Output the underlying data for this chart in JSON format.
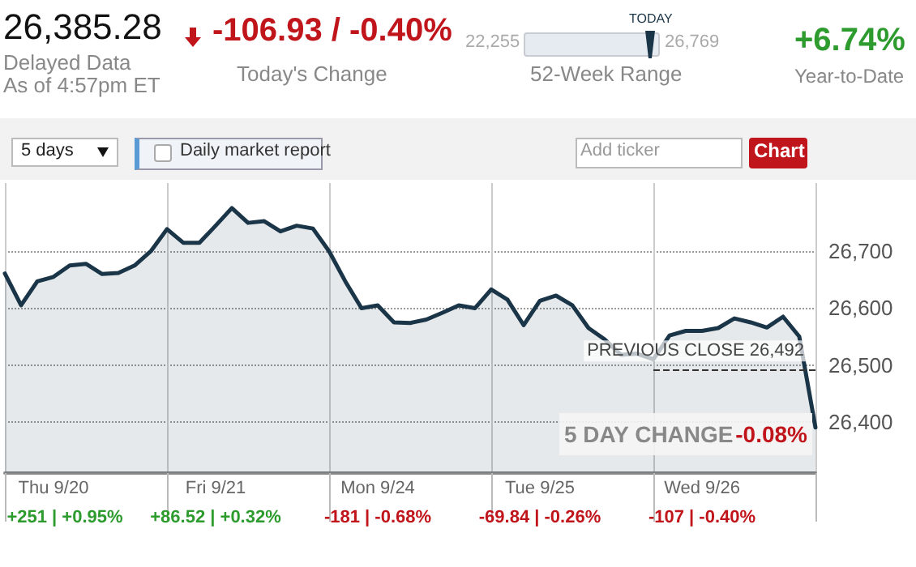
{
  "chart_data": {
    "type": "area",
    "annotations": [
      "26,385.28",
      "Delayed Data",
      "As of 4:57pm ET",
      "-106.93 / -0.40%",
      "Today's Change",
      "22,255",
      "26,769",
      "TODAY",
      "52-Week Range",
      "+6.74%",
      "Year-to-Date",
      "5 days",
      "Daily market report",
      "Add ticker",
      "Chart",
      "5 DAY CHANGE",
      "-0.08%",
      "+251 | +0.95%",
      "+86.52 | +0.32%",
      "-181 | -0.68%",
      "-69.84 | -0.26%",
      "-107 | -0.40%"
    ],
    "categories": [
      null,
      null,
      null,
      "Thu 9/20",
      null,
      null,
      null,
      null,
      null,
      null,
      null,
      null,
      null,
      "Fri 9/21",
      null,
      null,
      null,
      null,
      null,
      null,
      null,
      null,
      null,
      "Mon 9/24",
      null,
      null,
      null,
      null,
      null,
      null,
      null,
      null,
      null,
      "Tue 9/25",
      null,
      null,
      null,
      null,
      null,
      null,
      null,
      null,
      null,
      "Wed 9/26",
      null,
      null,
      null,
      null,
      null,
      null,
      null
    ],
    "series": [
      {
        "color": "#1b3548",
        "values": [
          26661,
          26605,
          26647,
          26655,
          26675,
          26678,
          26660,
          26662,
          26675,
          26700,
          26739,
          26715,
          26715,
          26745,
          26776,
          26750,
          26753,
          26735,
          26745,
          26740,
          26700,
          26647,
          26600,
          26605,
          26575,
          26574,
          26580,
          26592,
          26605,
          26600,
          26633,
          26615,
          26570,
          26613,
          26622,
          26605,
          26565,
          26545,
          26518,
          26520,
          26510,
          26552,
          26560,
          26560,
          26565,
          26582,
          26575,
          26566,
          26585,
          26550,
          26390
        ]
      }
    ],
    "ylim": [
      26310,
      26820
    ],
    "yticks": [
      {
        "value": 26400,
        "label": "26,400"
      },
      {
        "value": 26500,
        "label": "26,500"
      },
      {
        "value": 26600,
        "label": "26,600"
      },
      {
        "value": 26700,
        "label": "26,700"
      }
    ],
    "ref_lines": [
      {
        "axis": "y",
        "value": 26492,
        "label": "PREVIOUS CLOSE 26,492",
        "line_style": "dashed",
        "color": "#333333"
      }
    ],
    "grid": true,
    "line_style": "solid"
  }
}
